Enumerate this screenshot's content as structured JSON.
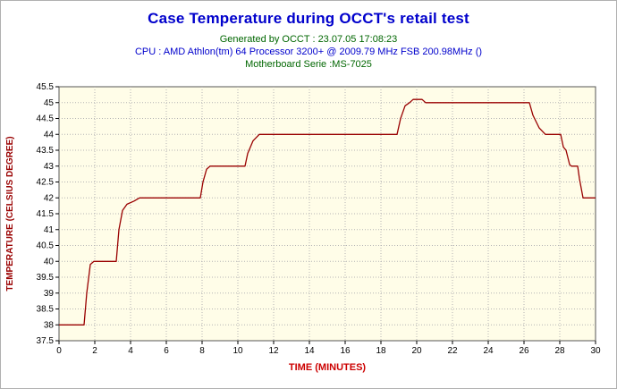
{
  "header": {
    "title": "Case Temperature during OCCT's retail test",
    "generated": "Generated by OCCT : 23.07.05 17:08:23",
    "cpu": "CPU : AMD Athlon(tm) 64 Processor 3200+ @ 2009.79 MHz FSB 200.98MHz ()",
    "motherboard": "Motherboard Serie :MS-7025"
  },
  "colors": {
    "title": "#0000cc",
    "subtitle_green": "#006600",
    "subtitle_blue": "#0000cc",
    "background": "#ffffff",
    "border": "#b0b0b0"
  },
  "chart_data": {
    "type": "line",
    "title": "Case Temperature during OCCT's retail test",
    "xlabel": "TIME (MINUTES)",
    "ylabel": "TEMPERATURE (CELSIUS DEGREE)",
    "xlim": [
      0,
      30
    ],
    "ylim": [
      37.5,
      45.5
    ],
    "x_ticks": [
      0,
      2,
      4,
      6,
      8,
      10,
      12,
      14,
      16,
      18,
      20,
      22,
      24,
      26,
      28,
      30
    ],
    "y_ticks": [
      37.5,
      38,
      38.5,
      39,
      39.5,
      40,
      40.5,
      41,
      41.5,
      42,
      42.5,
      43,
      43.5,
      44,
      44.5,
      45,
      45.5
    ],
    "grid": true,
    "legend": "none",
    "line_color": "#990000",
    "plot_bg": "#fffde8",
    "grid_color": "#b4b4b4",
    "xlabel_color": "#cc0000",
    "ylabel_color": "#990000",
    "series": [
      {
        "name": "Case Temperature",
        "points": [
          [
            0,
            38
          ],
          [
            1.4,
            38
          ],
          [
            1.55,
            39
          ],
          [
            1.75,
            39.9
          ],
          [
            1.95,
            40
          ],
          [
            3.2,
            40
          ],
          [
            3.35,
            41
          ],
          [
            3.55,
            41.6
          ],
          [
            3.8,
            41.8
          ],
          [
            4.2,
            41.9
          ],
          [
            4.5,
            42
          ],
          [
            7.9,
            42
          ],
          [
            8.05,
            42.5
          ],
          [
            8.25,
            42.9
          ],
          [
            8.45,
            43
          ],
          [
            10.4,
            43
          ],
          [
            10.55,
            43.4
          ],
          [
            10.85,
            43.8
          ],
          [
            11.2,
            44
          ],
          [
            18.9,
            44
          ],
          [
            19.1,
            44.5
          ],
          [
            19.35,
            44.9
          ],
          [
            19.6,
            45
          ],
          [
            19.8,
            45.1
          ],
          [
            20.3,
            45.1
          ],
          [
            20.5,
            45
          ],
          [
            26.3,
            45
          ],
          [
            26.5,
            44.6
          ],
          [
            26.85,
            44.2
          ],
          [
            27.2,
            44
          ],
          [
            28.05,
            44
          ],
          [
            28.2,
            43.6
          ],
          [
            28.35,
            43.5
          ],
          [
            28.55,
            43.05
          ],
          [
            28.65,
            43
          ],
          [
            29.0,
            43
          ],
          [
            29.1,
            42.6
          ],
          [
            29.3,
            42
          ],
          [
            30,
            42
          ]
        ]
      }
    ]
  }
}
